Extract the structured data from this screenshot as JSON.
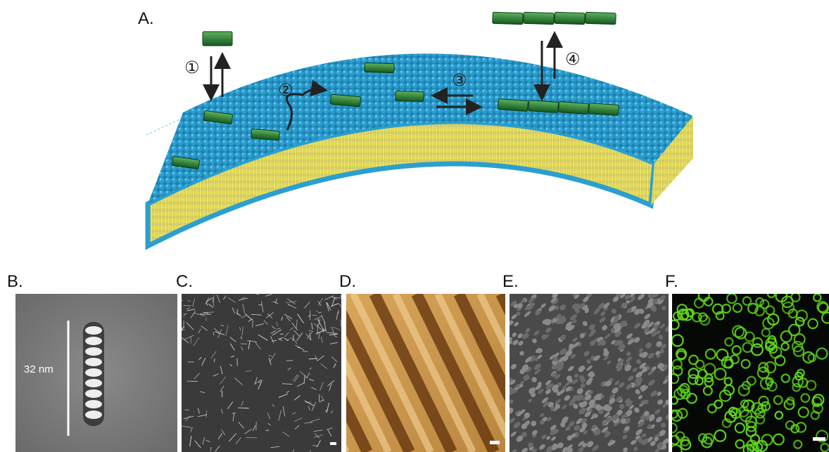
{
  "panels": [
    {
      "label": "A."
    },
    {
      "label": "B."
    },
    {
      "label": "C."
    },
    {
      "label": "D."
    },
    {
      "label": "E."
    },
    {
      "label": "F."
    }
  ],
  "steps": [
    "①",
    "②",
    "③",
    "④"
  ],
  "scale_label": "32 nm"
}
